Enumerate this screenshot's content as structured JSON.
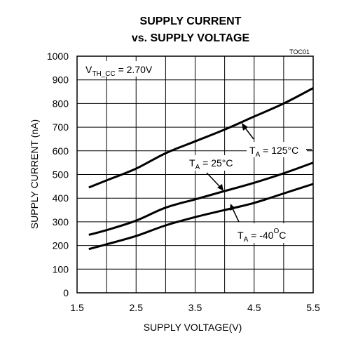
{
  "chart_data": {
    "type": "line",
    "title": "SUPPLY CURRENT",
    "subtitle": "vs. SUPPLY VOLTAGE",
    "figure_code": "TOC01",
    "xlabel": "SUPPLY VOLTAGE(V)",
    "ylabel": "SUPPLY CURRENT (nA)",
    "xlim": [
      1.5,
      5.5
    ],
    "ylim": [
      0,
      1000
    ],
    "xticks": [
      "1.5",
      "2.5",
      "3.5",
      "4.5",
      "5.5"
    ],
    "yticks": [
      "0",
      "100",
      "200",
      "300",
      "400",
      "500",
      "600",
      "700",
      "800",
      "900",
      "1000"
    ],
    "grid": true,
    "condition": {
      "main": "V",
      "sub": "TH_CC",
      "rest": " = 2.70V"
    },
    "series": [
      {
        "name": "T_A = 125°C",
        "label_main": "T",
        "label_sub": "A",
        "label_rest": " = 125°C",
        "x": [
          1.7,
          2.0,
          2.5,
          3.0,
          3.5,
          4.0,
          4.5,
          5.0,
          5.5
        ],
        "y": [
          445,
          475,
          525,
          590,
          640,
          690,
          745,
          800,
          865
        ]
      },
      {
        "name": "T_A = 25°C",
        "label_main": "T",
        "label_sub": "A",
        "label_rest": " = 25°C",
        "x": [
          1.7,
          2.0,
          2.5,
          3.0,
          3.5,
          4.0,
          4.5,
          5.0,
          5.5
        ],
        "y": [
          245,
          265,
          305,
          360,
          395,
          430,
          465,
          505,
          550
        ]
      },
      {
        "name": "T_A = -40°C",
        "label_main": "T",
        "label_sub": "A",
        "label_rest": " = -40",
        "label_sup": "O",
        "label_end": "C",
        "x": [
          1.7,
          2.0,
          2.5,
          3.0,
          3.5,
          4.0,
          4.5,
          5.0,
          5.5
        ],
        "y": [
          185,
          205,
          240,
          285,
          320,
          350,
          380,
          420,
          460
        ]
      }
    ]
  }
}
